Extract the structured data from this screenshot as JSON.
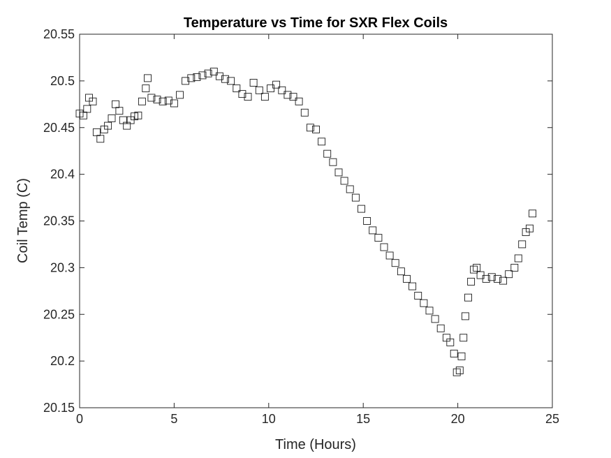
{
  "chart_data": {
    "type": "scatter",
    "title": "Temperature vs Time for SXR Flex Coils",
    "xlabel": "Time (Hours)",
    "ylabel": "Coil Temp (C)",
    "xlim": [
      0,
      25
    ],
    "ylim": [
      20.15,
      20.55
    ],
    "xticks": [
      0,
      5,
      10,
      15,
      20,
      25
    ],
    "yticks": [
      20.15,
      20.2,
      20.25,
      20.3,
      20.35,
      20.4,
      20.45,
      20.5,
      20.55
    ],
    "xtick_labels": [
      "0",
      "5",
      "10",
      "15",
      "20",
      "25"
    ],
    "ytick_labels": [
      "20.15",
      "20.2",
      "20.25",
      "20.3",
      "20.35",
      "20.4",
      "20.45",
      "20.5",
      "20.55"
    ],
    "marker": "square-open",
    "marker_color": "#1a1a1a",
    "grid": false,
    "legend": "none",
    "series": [
      {
        "x": [
          0.0,
          0.2,
          0.4,
          0.5,
          0.7,
          0.9,
          1.1,
          1.3,
          1.5,
          1.7,
          1.9,
          2.1,
          2.3,
          2.5,
          2.7,
          2.9,
          3.1,
          3.3,
          3.5,
          3.6,
          3.8,
          4.1,
          4.4,
          4.7,
          5.0,
          5.3,
          5.6,
          5.9,
          6.2,
          6.5,
          6.8,
          7.1,
          7.4,
          7.7,
          8.0,
          8.3,
          8.6,
          8.9,
          9.2,
          9.5,
          9.8,
          10.1,
          10.4,
          10.7,
          11.0,
          11.3,
          11.6,
          11.9,
          12.2,
          12.5,
          12.8,
          13.1,
          13.4,
          13.7,
          14.0,
          14.3,
          14.6,
          14.9,
          15.2,
          15.5,
          15.8,
          16.1,
          16.4,
          16.7,
          17.0,
          17.3,
          17.6,
          17.9,
          18.2,
          18.5,
          18.8,
          19.1,
          19.4,
          19.6,
          19.8,
          19.95,
          20.1,
          20.2,
          20.3,
          20.4,
          20.55,
          20.7,
          20.85,
          21.0,
          21.2,
          21.5,
          21.8,
          22.1,
          22.4,
          22.7,
          23.0,
          23.2,
          23.4,
          23.6,
          23.8,
          23.95
        ],
        "y": [
          20.465,
          20.463,
          20.47,
          20.482,
          20.478,
          20.445,
          20.438,
          20.448,
          20.452,
          20.46,
          20.475,
          20.468,
          20.458,
          20.452,
          20.458,
          20.462,
          20.463,
          20.478,
          20.492,
          20.503,
          20.482,
          20.48,
          20.478,
          20.479,
          20.476,
          20.485,
          20.5,
          20.503,
          20.504,
          20.506,
          20.508,
          20.51,
          20.505,
          20.502,
          20.5,
          20.492,
          20.486,
          20.483,
          20.498,
          20.49,
          20.483,
          20.492,
          20.496,
          20.49,
          20.485,
          20.483,
          20.478,
          20.466,
          20.45,
          20.448,
          20.435,
          20.422,
          20.413,
          20.402,
          20.393,
          20.384,
          20.375,
          20.363,
          20.35,
          20.34,
          20.332,
          20.322,
          20.313,
          20.305,
          20.296,
          20.288,
          20.28,
          20.27,
          20.262,
          20.254,
          20.245,
          20.235,
          20.225,
          20.22,
          20.208,
          20.188,
          20.19,
          20.205,
          20.225,
          20.248,
          20.268,
          20.285,
          20.298,
          20.3,
          20.292,
          20.288,
          20.29,
          20.288,
          20.286,
          20.293,
          20.3,
          20.31,
          20.325,
          20.338,
          20.342,
          20.358
        ]
      }
    ]
  }
}
